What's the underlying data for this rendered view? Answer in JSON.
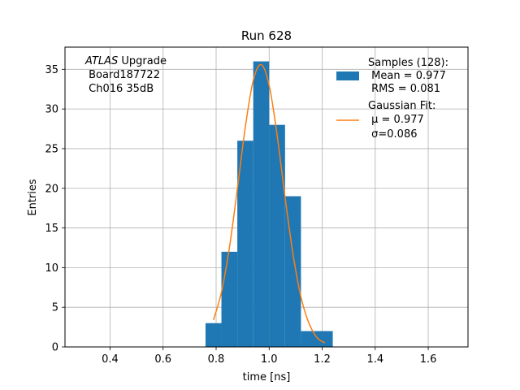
{
  "chart_data": {
    "type": "bar",
    "title": "Run 628",
    "xlabel": "time [ns]",
    "ylabel": "Entries",
    "xlim": [
      0.23,
      1.75
    ],
    "ylim": [
      0,
      37.8
    ],
    "xticks": [
      0.4,
      0.6,
      0.8,
      1.0,
      1.2,
      1.4,
      1.6
    ],
    "xtick_labels": [
      "0.4",
      "0.6",
      "0.8",
      "1.0",
      "1.2",
      "1.4",
      "1.6"
    ],
    "yticks": [
      0,
      5,
      10,
      15,
      20,
      25,
      30,
      35
    ],
    "ytick_labels": [
      "0",
      "5",
      "10",
      "15",
      "20",
      "25",
      "30",
      "35"
    ],
    "grid": true,
    "histogram": {
      "name": "Samples (128):",
      "color": "#1f77b4",
      "bin_edges": [
        0.76,
        0.82,
        0.88,
        0.94,
        1.0,
        1.06,
        1.12,
        1.18,
        1.24
      ],
      "counts": [
        3,
        12,
        26,
        36,
        28,
        19,
        2,
        2
      ]
    },
    "fit": {
      "name": "Gaussian Fit:",
      "color": "#ff7f0e",
      "x": [
        0.79,
        0.82,
        0.85,
        0.88,
        0.91,
        0.94,
        0.97,
        1.0,
        1.03,
        1.06,
        1.09,
        1.12,
        1.15,
        1.18,
        1.21
      ],
      "y": [
        3.4,
        6.9,
        12.5,
        19.9,
        27.7,
        33.6,
        35.6,
        33.0,
        26.7,
        18.9,
        11.7,
        6.3,
        3.0,
        1.2,
        0.5
      ]
    },
    "legend": {
      "placement": "upper right",
      "samples_lines": [
        "Samples (128):",
        " Mean = 0.977",
        " RMS = 0.081"
      ],
      "fit_lines": [
        "Gaussian Fit:",
        " μ = 0.977",
        " σ=0.086"
      ]
    },
    "annotation": {
      "italic": "ATLAS",
      "rest": " Upgrade",
      "line2": " Board187722",
      "line3": " Ch016 35dB"
    }
  }
}
